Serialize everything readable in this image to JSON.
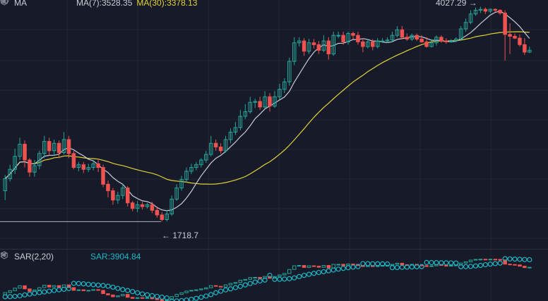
{
  "ma_header": {
    "label": "MA",
    "ma7": "MA(7):3528.35",
    "ma30": "MA(30):3378.13"
  },
  "sar_header": {
    "label": "SAR(2,20)",
    "value": "SAR:3904.84"
  },
  "annotations": {
    "high": "4027.29 →",
    "low": "← 1718.7"
  },
  "icons": [
    "chevron-down-icon",
    "eye-icon",
    "gear-icon",
    "close-icon"
  ],
  "colors": {
    "background": "#161a29",
    "up": "#26a69a",
    "down": "#ef5350",
    "ma7": "#c9ccd6",
    "ma30": "#e4d23a",
    "sar": "#1fb7c5",
    "grid": "#232838"
  },
  "chart_data": {
    "type": "candlestick",
    "price_range": [
      1600,
      4100
    ],
    "high_marker": 4027.29,
    "low_marker": 1718.7,
    "indicators": {
      "MA7_last": 3528.35,
      "MA30_last": 3378.13,
      "SAR_last": 3904.84
    },
    "candles": [
      [
        2050,
        2180,
        1950,
        2220
      ],
      [
        2180,
        2280,
        2150,
        2330
      ],
      [
        2280,
        2420,
        2230,
        2500
      ],
      [
        2420,
        2550,
        2380,
        2620
      ],
      [
        2550,
        2380,
        2300,
        2590
      ],
      [
        2380,
        2250,
        2200,
        2400
      ],
      [
        2250,
        2320,
        2200,
        2380
      ],
      [
        2320,
        2450,
        2280,
        2480
      ],
      [
        2450,
        2580,
        2400,
        2640
      ],
      [
        2580,
        2480,
        2430,
        2620
      ],
      [
        2480,
        2560,
        2430,
        2600
      ],
      [
        2560,
        2460,
        2400,
        2590
      ],
      [
        2460,
        2600,
        2440,
        2680
      ],
      [
        2600,
        2450,
        2400,
        2640
      ],
      [
        2450,
        2300,
        2280,
        2480
      ],
      [
        2300,
        2330,
        2260,
        2360
      ],
      [
        2330,
        2280,
        2240,
        2360
      ],
      [
        2280,
        2300,
        2250,
        2340
      ],
      [
        2300,
        2340,
        2270,
        2380
      ],
      [
        2340,
        2300,
        2250,
        2380
      ],
      [
        2300,
        2120,
        2090,
        2330
      ],
      [
        2120,
        2050,
        1980,
        2160
      ],
      [
        2050,
        1950,
        1900,
        2080
      ],
      [
        1950,
        2000,
        1910,
        2040
      ],
      [
        2000,
        2080,
        1960,
        2120
      ],
      [
        2080,
        1920,
        1880,
        2100
      ],
      [
        1920,
        1860,
        1830,
        1940
      ],
      [
        1860,
        1900,
        1820,
        1940
      ],
      [
        1900,
        1880,
        1850,
        1930
      ],
      [
        1880,
        1900,
        1860,
        1920
      ],
      [
        1900,
        1840,
        1810,
        1930
      ],
      [
        1840,
        1790,
        1760,
        1880
      ],
      [
        1790,
        1740,
        1720,
        1820
      ],
      [
        1740,
        1800,
        1718.7,
        1840
      ],
      [
        1800,
        1960,
        1780,
        2000
      ],
      [
        1960,
        2080,
        1940,
        2120
      ],
      [
        2080,
        2170,
        2050,
        2210
      ],
      [
        2170,
        2260,
        2140,
        2300
      ],
      [
        2260,
        2300,
        2230,
        2340
      ],
      [
        2300,
        2330,
        2270,
        2360
      ],
      [
        2330,
        2380,
        2300,
        2400
      ],
      [
        2380,
        2440,
        2350,
        2480
      ],
      [
        2440,
        2560,
        2420,
        2640
      ],
      [
        2560,
        2520,
        2480,
        2600
      ],
      [
        2520,
        2480,
        2450,
        2560
      ],
      [
        2480,
        2600,
        2460,
        2640
      ],
      [
        2600,
        2680,
        2560,
        2720
      ],
      [
        2680,
        2730,
        2650,
        2790
      ],
      [
        2730,
        2850,
        2700,
        2920
      ],
      [
        2850,
        2900,
        2820,
        2980
      ],
      [
        2900,
        3000,
        2880,
        3060
      ],
      [
        3000,
        3010,
        2940,
        3040
      ],
      [
        3010,
        2950,
        2920,
        3060
      ],
      [
        2950,
        3060,
        2930,
        3120
      ],
      [
        3060,
        2960,
        2900,
        3100
      ],
      [
        2960,
        3060,
        2940,
        3120
      ],
      [
        3060,
        3140,
        3030,
        3200
      ],
      [
        3140,
        3220,
        3100,
        3260
      ],
      [
        3220,
        3440,
        3180,
        3480
      ],
      [
        3440,
        3640,
        3400,
        3700
      ],
      [
        3640,
        3660,
        3600,
        3700
      ],
      [
        3660,
        3550,
        3500,
        3690
      ],
      [
        3550,
        3640,
        3520,
        3680
      ],
      [
        3640,
        3620,
        3580,
        3680
      ],
      [
        3620,
        3560,
        3520,
        3660
      ],
      [
        3560,
        3660,
        3540,
        3720
      ],
      [
        3660,
        3520,
        3460,
        3700
      ],
      [
        3520,
        3720,
        3500,
        3760
      ],
      [
        3720,
        3720,
        3690,
        3760
      ],
      [
        3720,
        3650,
        3620,
        3760
      ],
      [
        3650,
        3740,
        3620,
        3760
      ],
      [
        3740,
        3720,
        3680,
        3760
      ],
      [
        3720,
        3650,
        3620,
        3760
      ],
      [
        3650,
        3600,
        3540,
        3690
      ],
      [
        3600,
        3650,
        3580,
        3680
      ],
      [
        3650,
        3600,
        3560,
        3680
      ],
      [
        3600,
        3660,
        3580,
        3690
      ],
      [
        3660,
        3660,
        3640,
        3690
      ],
      [
        3660,
        3670,
        3640,
        3700
      ],
      [
        3670,
        3720,
        3650,
        3760
      ],
      [
        3720,
        3780,
        3700,
        3820
      ],
      [
        3780,
        3700,
        3680,
        3820
      ],
      [
        3700,
        3680,
        3660,
        3740
      ],
      [
        3680,
        3720,
        3660,
        3740
      ],
      [
        3720,
        3680,
        3660,
        3740
      ],
      [
        3680,
        3650,
        3640,
        3720
      ],
      [
        3650,
        3600,
        3590,
        3700
      ],
      [
        3600,
        3640,
        3590,
        3680
      ],
      [
        3640,
        3700,
        3610,
        3720
      ],
      [
        3700,
        3660,
        3640,
        3720
      ],
      [
        3660,
        3650,
        3630,
        3690
      ],
      [
        3650,
        3660,
        3640,
        3680
      ],
      [
        3660,
        3680,
        3650,
        3700
      ],
      [
        3680,
        3790,
        3660,
        3820
      ],
      [
        3790,
        3860,
        3760,
        3900
      ],
      [
        3860,
        3950,
        3840,
        3990
      ],
      [
        3950,
        3990,
        3930,
        4020
      ],
      [
        3990,
        4000,
        3960,
        4027.29
      ],
      [
        4000,
        3980,
        3950,
        4020
      ],
      [
        3980,
        4000,
        3960,
        4010
      ],
      [
        4000,
        3990,
        3970,
        4010
      ],
      [
        3990,
        3960,
        3940,
        4000
      ],
      [
        3960,
        3730,
        3450,
        3990
      ],
      [
        3730,
        3710,
        3520,
        3850
      ],
      [
        3710,
        3690,
        3680,
        3740
      ],
      [
        3690,
        3620,
        3600,
        3730
      ],
      [
        3620,
        3540,
        3510,
        3690
      ],
      [
        3540,
        3560,
        3530,
        3600
      ]
    ]
  }
}
